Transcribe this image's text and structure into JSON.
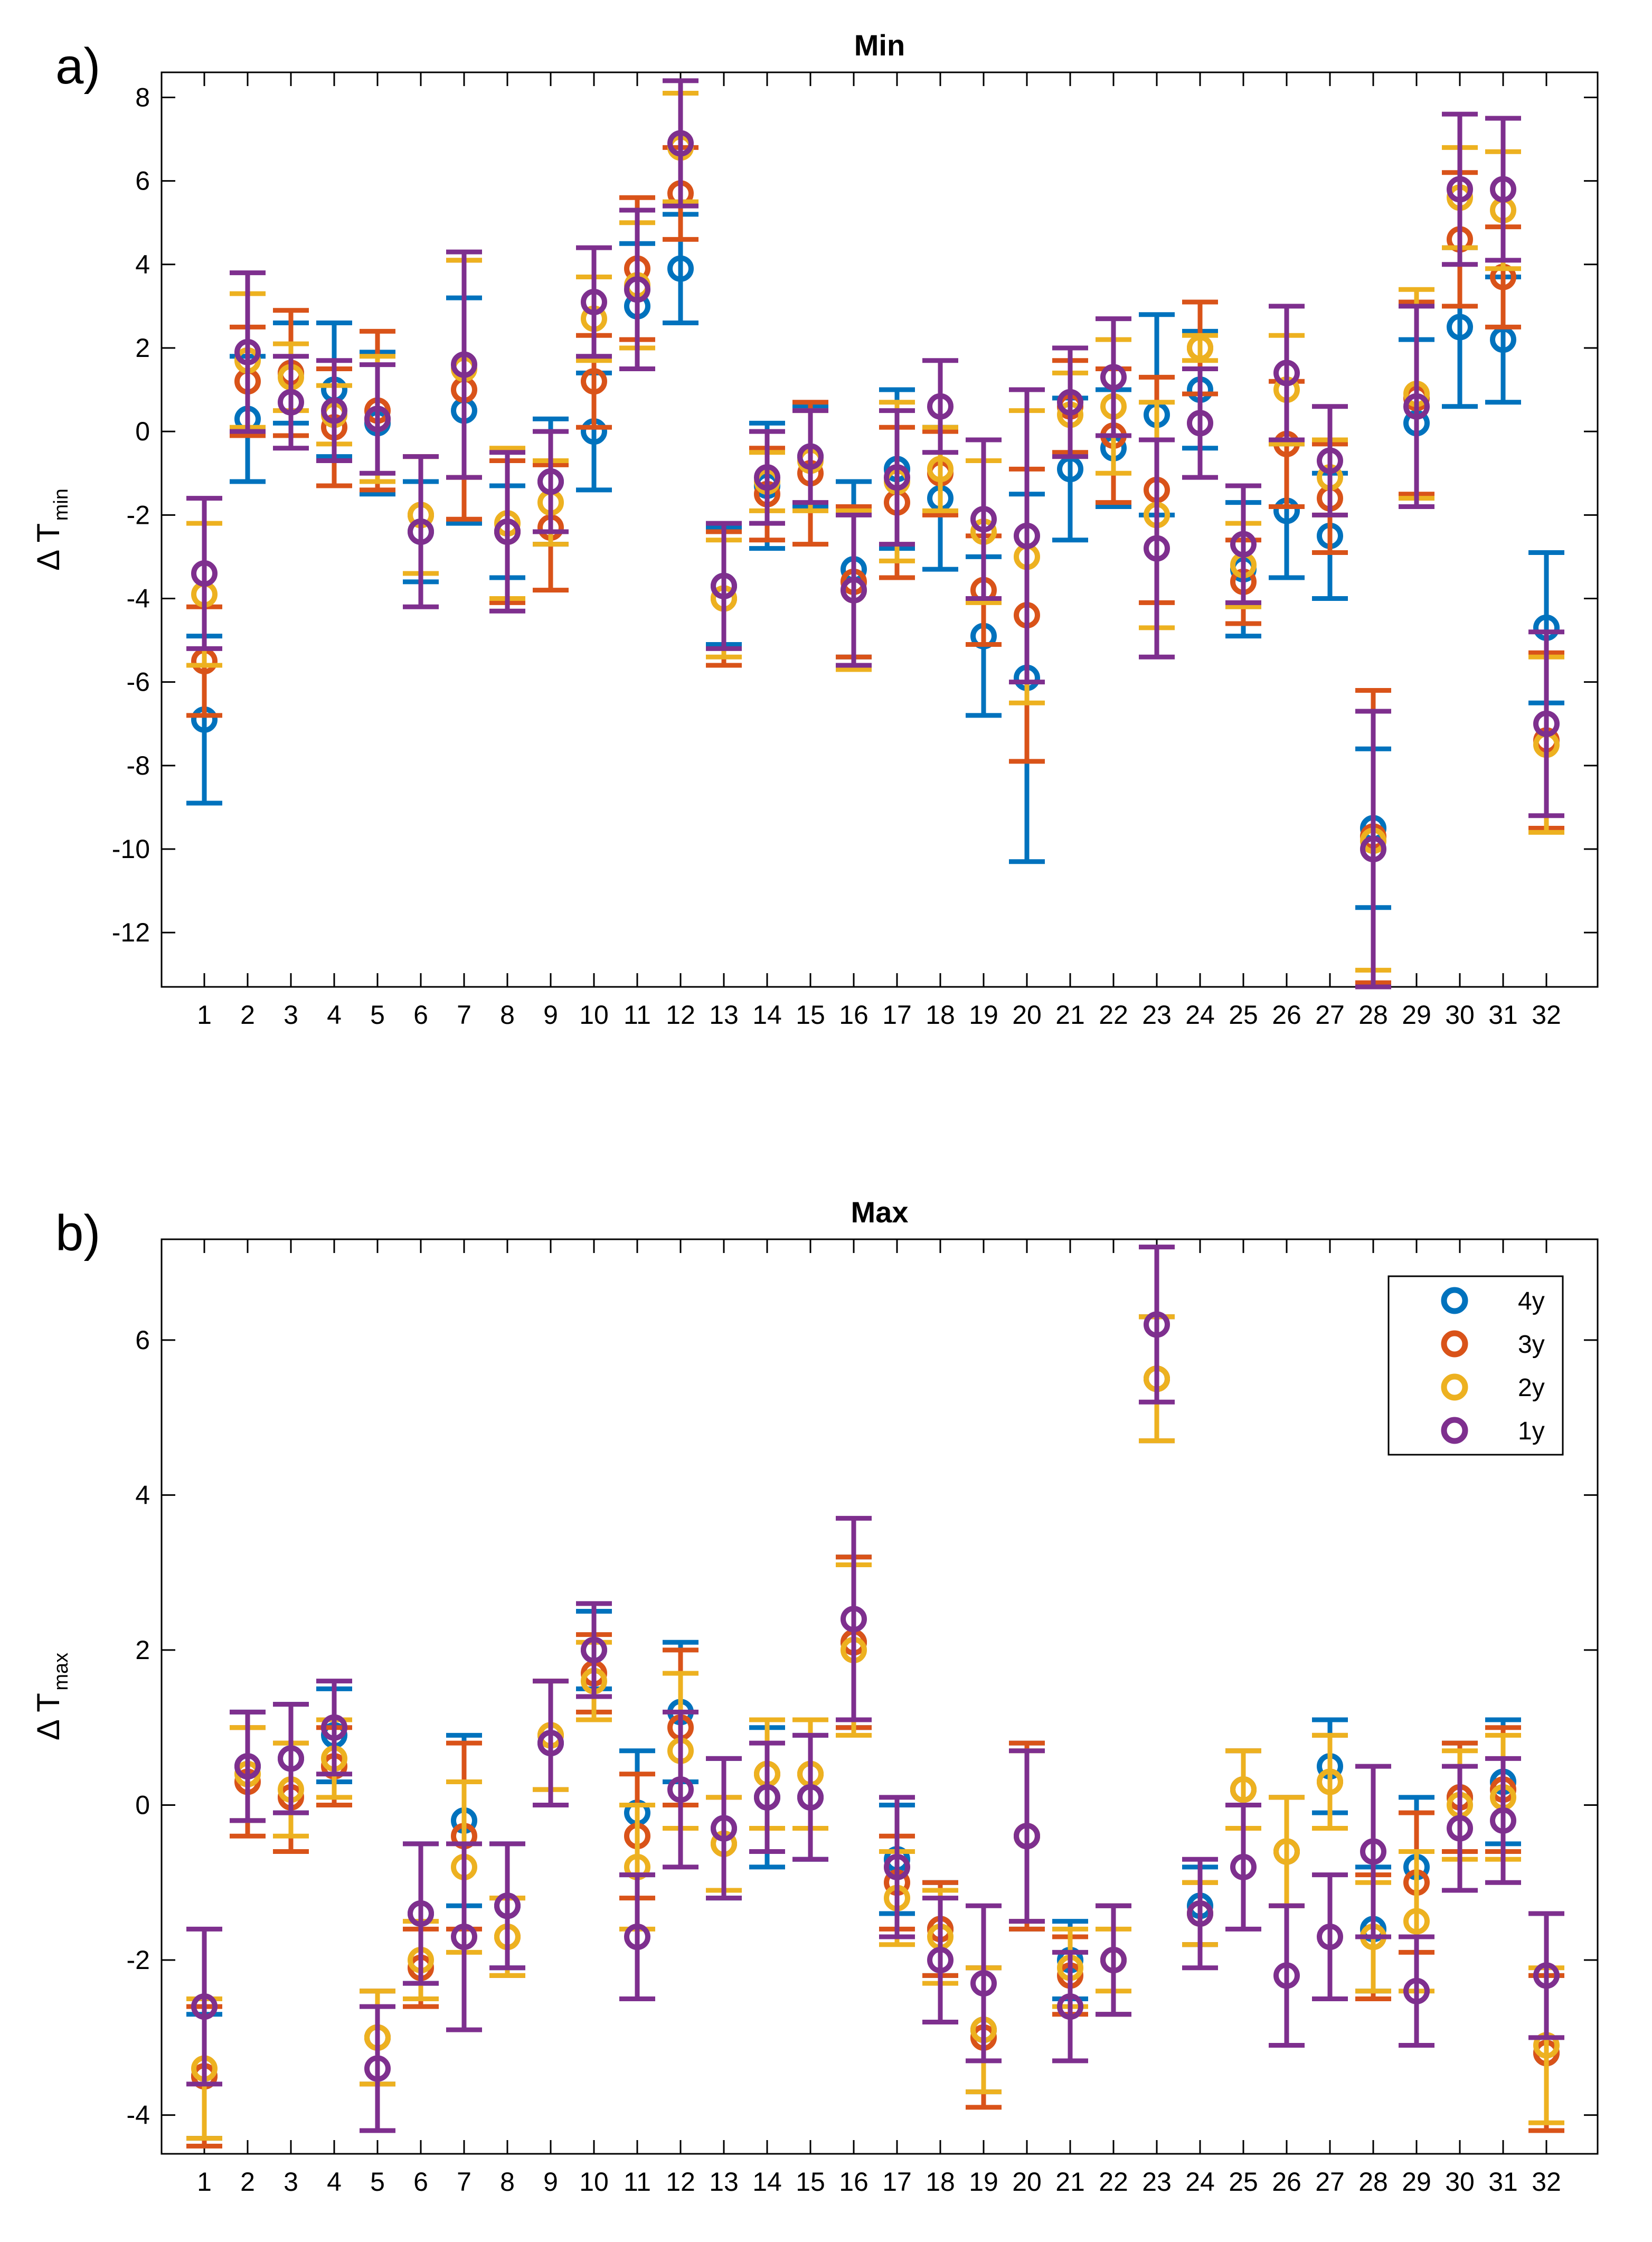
{
  "chart_data": [
    {
      "type": "scatter",
      "panel_label": "a)",
      "title": "Min",
      "ylabel_main": "Δ T",
      "ylabel_sub": "min",
      "xlabel": "",
      "ylim": [
        -13.3,
        8.6
      ],
      "yticks": [
        8,
        6,
        4,
        2,
        0,
        -2,
        -4,
        -6,
        -8,
        -10,
        -12
      ],
      "ytick_labels": [
        "8",
        "6",
        "4",
        "2",
        "0",
        "-2",
        "-4",
        "-6",
        "-8",
        "-10",
        "-12"
      ],
      "categories": [
        "1",
        "2",
        "3",
        "4",
        "5",
        "6",
        "7",
        "8",
        "9",
        "10",
        "11",
        "12",
        "13",
        "14",
        "15",
        "16",
        "17",
        "18",
        "19",
        "20",
        "21",
        "22",
        "23",
        "24",
        "25",
        "26",
        "27",
        "28",
        "29",
        "30",
        "31",
        "32"
      ],
      "series": [
        {
          "name": "4y",
          "color": "#0072BD",
          "values": [
            -6.9,
            0.3,
            1.4,
            1.0,
            0.2,
            -2.4,
            0.5,
            -2.4,
            -1.2,
            0.0,
            3.0,
            3.9,
            -3.7,
            -1.3,
            -0.6,
            -3.3,
            -0.9,
            -1.6,
            -4.9,
            -5.9,
            -0.9,
            -0.4,
            0.4,
            1.0,
            -3.3,
            -1.9,
            -2.5,
            -9.5,
            0.2,
            2.5,
            2.2,
            -4.7
          ],
          "err": [
            2.0,
            1.5,
            1.2,
            1.6,
            1.7,
            1.2,
            2.7,
            1.1,
            1.5,
            1.4,
            1.5,
            1.3,
            1.4,
            1.5,
            1.2,
            2.1,
            1.9,
            1.7,
            1.9,
            4.4,
            1.7,
            1.4,
            2.4,
            1.4,
            1.6,
            1.6,
            1.5,
            1.9,
            2.0,
            1.9,
            1.5,
            1.8
          ]
        },
        {
          "name": "3y",
          "color": "#D95319",
          "values": [
            -5.5,
            1.2,
            1.4,
            0.1,
            0.5,
            -2.0,
            1.0,
            -2.4,
            -2.3,
            1.2,
            3.9,
            5.7,
            -4.0,
            -1.5,
            -1.0,
            -3.6,
            -1.7,
            -1.0,
            -3.8,
            -4.4,
            0.6,
            -0.1,
            -1.4,
            2.0,
            -3.6,
            -0.3,
            -1.6,
            -9.7,
            0.8,
            4.6,
            3.7,
            -7.4
          ],
          "err": [
            1.3,
            1.3,
            1.5,
            1.4,
            1.9,
            1.4,
            3.1,
            1.7,
            1.5,
            1.1,
            1.7,
            1.1,
            1.6,
            1.1,
            1.7,
            1.8,
            1.8,
            1.0,
            1.3,
            3.5,
            1.1,
            1.6,
            2.7,
            1.1,
            1.0,
            1.5,
            1.3,
            3.5,
            2.3,
            1.6,
            1.2,
            2.1
          ]
        },
        {
          "name": "2y",
          "color": "#EDB120",
          "values": [
            -3.9,
            1.7,
            1.3,
            0.4,
            0.3,
            -2.0,
            1.5,
            -2.2,
            -1.7,
            2.7,
            3.5,
            6.8,
            -4.0,
            -1.2,
            -0.7,
            -3.8,
            -1.2,
            -0.9,
            -2.4,
            -3.0,
            0.4,
            0.6,
            -2.0,
            2.0,
            -3.2,
            1.0,
            -1.1,
            -9.8,
            0.9,
            5.6,
            5.3,
            -7.5
          ],
          "err": [
            1.7,
            1.6,
            0.8,
            0.7,
            1.5,
            1.4,
            2.6,
            1.8,
            1.0,
            1.0,
            1.5,
            1.3,
            1.4,
            0.7,
            1.2,
            1.9,
            1.9,
            1.0,
            1.7,
            3.5,
            1.0,
            1.6,
            2.7,
            0.3,
            1.0,
            1.3,
            0.9,
            3.1,
            2.5,
            1.2,
            1.4,
            2.1
          ]
        },
        {
          "name": "1y",
          "color": "#7E2F8E",
          "values": [
            -3.4,
            1.9,
            0.7,
            0.5,
            0.3,
            -2.4,
            1.6,
            -2.4,
            -1.2,
            3.1,
            3.4,
            6.9,
            -3.7,
            -1.1,
            -0.6,
            -3.8,
            -1.1,
            0.6,
            -2.1,
            -2.5,
            0.7,
            1.3,
            -2.8,
            0.2,
            -2.7,
            1.4,
            -0.7,
            -10.0,
            0.6,
            5.8,
            5.8,
            -7.0
          ],
          "err": [
            1.8,
            1.9,
            1.1,
            1.2,
            1.3,
            1.8,
            2.7,
            1.9,
            1.2,
            1.3,
            1.9,
            1.5,
            1.5,
            1.1,
            1.1,
            1.8,
            1.6,
            1.1,
            1.9,
            3.5,
            1.3,
            1.4,
            2.6,
            1.3,
            1.4,
            1.6,
            1.3,
            3.3,
            2.4,
            1.8,
            1.7,
            2.2
          ]
        }
      ]
    },
    {
      "type": "scatter",
      "panel_label": "b)",
      "title": "Max",
      "ylabel_main": "Δ T",
      "ylabel_sub": "max",
      "xlabel": "",
      "ylim": [
        -4.5,
        7.3
      ],
      "yticks": [
        6,
        4,
        2,
        0,
        -2,
        -4
      ],
      "ytick_labels": [
        "6",
        "4",
        "2",
        "0",
        "-2",
        "-4"
      ],
      "legend": {
        "placement": "top-right",
        "entries": [
          "4y",
          "3y",
          "2y",
          "1y"
        ]
      },
      "categories": [
        "1",
        "2",
        "3",
        "4",
        "5",
        "6",
        "7",
        "8",
        "9",
        "10",
        "11",
        "12",
        "13",
        "14",
        "15",
        "16",
        "17",
        "18",
        "19",
        "20",
        "21",
        "22",
        "23",
        "24",
        "25",
        "26",
        "27",
        "28",
        "29",
        "30",
        "31",
        "32"
      ],
      "series": [
        {
          "name": "4y",
          "color": "#0072BD",
          "values": [
            -3.5,
            0.5,
            0.6,
            0.9,
            -3.0,
            -1.4,
            -0.2,
            -1.3,
            0.8,
            2.0,
            -0.1,
            1.2,
            -0.3,
            0.1,
            0.1,
            2.1,
            -0.7,
            -1.6,
            -2.9,
            -0.4,
            -2.0,
            -2.0,
            5.5,
            -1.3,
            0.2,
            -0.6,
            0.5,
            -1.6,
            -0.8,
            0.1,
            0.3,
            -3.2
          ],
          "err": [
            0.8,
            0.7,
            0.7,
            0.6,
            0.6,
            0.9,
            1.1,
            0.8,
            0.8,
            0.5,
            0.8,
            0.9,
            0.9,
            0.9,
            0.8,
            1.1,
            0.7,
            0.6,
            0.8,
            1.2,
            0.5,
            0.7,
            0.8,
            0.5,
            0.5,
            0.7,
            0.6,
            0.8,
            0.9,
            0.7,
            0.8,
            1.0
          ]
        },
        {
          "name": "3y",
          "color": "#D95319",
          "values": [
            -3.5,
            0.3,
            0.1,
            0.5,
            -3.0,
            -2.1,
            -0.4,
            -1.7,
            0.9,
            1.7,
            -0.4,
            1.0,
            -0.5,
            0.4,
            0.4,
            2.1,
            -1.0,
            -1.6,
            -3.0,
            -0.4,
            -2.2,
            -2.0,
            5.5,
            -1.4,
            0.2,
            -0.6,
            0.3,
            -1.7,
            -1.0,
            0.1,
            0.2,
            -3.2
          ],
          "err": [
            0.9,
            0.7,
            0.7,
            0.5,
            0.6,
            0.5,
            1.2,
            0.5,
            0.7,
            0.5,
            0.8,
            1.0,
            0.6,
            0.7,
            0.7,
            1.1,
            0.6,
            0.6,
            0.9,
            1.2,
            0.5,
            0.7,
            0.8,
            0.4,
            0.5,
            0.7,
            0.6,
            0.8,
            0.9,
            0.7,
            0.8,
            1.0
          ]
        },
        {
          "name": "2y",
          "color": "#EDB120",
          "values": [
            -3.4,
            0.4,
            0.2,
            0.6,
            -3.0,
            -2.0,
            -0.8,
            -1.7,
            0.9,
            1.6,
            -0.8,
            0.7,
            -0.5,
            0.4,
            0.4,
            2.0,
            -1.2,
            -1.7,
            -2.9,
            -0.4,
            -2.1,
            -2.0,
            5.5,
            -1.4,
            0.2,
            -0.6,
            0.3,
            -1.7,
            -1.5,
            0.0,
            0.1,
            -3.1
          ],
          "err": [
            0.9,
            0.6,
            0.6,
            0.5,
            0.6,
            0.5,
            1.1,
            0.5,
            0.7,
            0.5,
            0.8,
            1.0,
            0.6,
            0.7,
            0.7,
            1.1,
            0.6,
            0.6,
            0.8,
            1.1,
            0.5,
            0.4,
            0.8,
            0.4,
            0.5,
            0.7,
            0.6,
            0.7,
            0.9,
            0.7,
            0.8,
            1.0
          ]
        },
        {
          "name": "1y",
          "color": "#7E2F8E",
          "values": [
            -2.6,
            0.5,
            0.6,
            1.0,
            -3.4,
            -1.4,
            -1.7,
            -1.3,
            0.8,
            2.0,
            -1.7,
            0.2,
            -0.3,
            0.1,
            0.1,
            2.4,
            -0.8,
            -2.0,
            -2.3,
            -0.4,
            -2.6,
            -2.0,
            6.2,
            -1.4,
            -0.8,
            -2.2,
            -1.7,
            -0.6,
            -2.4,
            -0.3,
            -0.2,
            -2.2
          ],
          "err": [
            1.0,
            0.7,
            0.7,
            0.6,
            0.8,
            0.9,
            1.2,
            0.8,
            0.8,
            0.6,
            0.8,
            1.0,
            0.9,
            0.7,
            0.8,
            1.3,
            0.9,
            0.8,
            1.0,
            1.1,
            0.7,
            0.7,
            1.0,
            0.7,
            0.8,
            0.9,
            0.8,
            1.1,
            0.7,
            0.8,
            0.8,
            0.8
          ]
        }
      ]
    }
  ]
}
